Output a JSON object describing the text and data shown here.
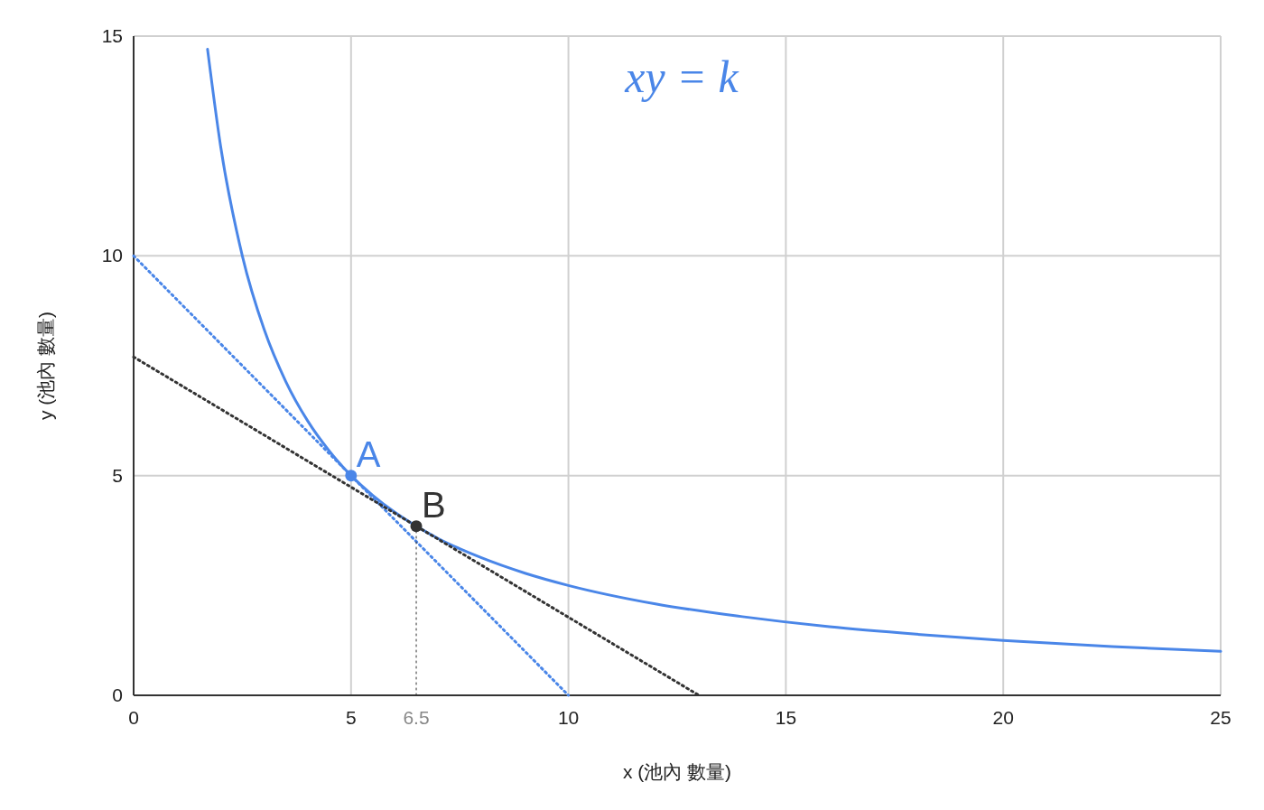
{
  "chart_data": {
    "type": "line",
    "xlabel": "x (池內 數量)",
    "ylabel": "y (池內 數量)",
    "xlim": [
      0,
      25
    ],
    "ylim": [
      0,
      15
    ],
    "xticks": [
      0,
      5,
      6.5,
      10,
      15,
      20,
      25
    ],
    "yticks": [
      0,
      5,
      10,
      15
    ],
    "grid": true,
    "line_style": "solid",
    "series": [
      {
        "color": "#4a86e8",
        "x": [
          1.7,
          2,
          2.5,
          3,
          3.5,
          4,
          4.5,
          5,
          5.5,
          6,
          6.5,
          7,
          8,
          9,
          10,
          12,
          14,
          16,
          18,
          20,
          22.5,
          25
        ],
        "values": [
          14.7,
          12.5,
          10,
          8.33,
          7.14,
          6.25,
          5.56,
          5,
          4.55,
          4.17,
          3.85,
          3.57,
          3.13,
          2.78,
          2.5,
          2.08,
          1.79,
          1.56,
          1.39,
          1.25,
          1.11,
          1
        ]
      },
      {
        "color": "#4a86e8",
        "line_style": "dotted",
        "x": [
          0,
          10
        ],
        "values": [
          10,
          0
        ]
      },
      {
        "color": "#333333",
        "line_style": "dotted",
        "x": [
          0,
          13
        ],
        "values": [
          7.7,
          0
        ]
      },
      {
        "color": "#333333",
        "line_style": "dotted",
        "x": [
          6.5,
          6.5
        ],
        "values": [
          0,
          3.85
        ]
      },
      {
        "type": "scatter",
        "marker": "circle",
        "color": "#4a86e8",
        "x": [
          5
        ],
        "values": [
          5
        ]
      },
      {
        "type": "scatter",
        "marker": "circle",
        "color": "#333333",
        "x": [
          6.5
        ],
        "values": [
          3.85
        ]
      }
    ],
    "annotations": [
      "xy = k",
      {
        "text": "A",
        "x": 5,
        "y": 5
      },
      {
        "text": "B",
        "x": 6.5,
        "y": 3.85
      }
    ]
  }
}
